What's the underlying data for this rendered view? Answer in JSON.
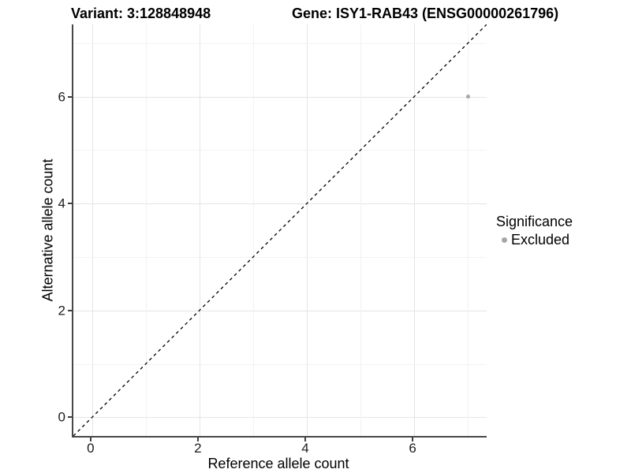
{
  "header": {
    "variant_title": "Variant: 3:128848948",
    "gene_title": "Gene: ISY1-RAB43 (ENSG00000261796)"
  },
  "axes": {
    "x": {
      "label": "Reference allele count",
      "major_ticks": [
        0,
        2,
        4,
        6
      ],
      "minor_ticks": [
        1,
        3,
        5,
        7
      ]
    },
    "y": {
      "label": "Alternative allele count",
      "major_ticks": [
        0,
        2,
        4,
        6
      ],
      "minor_ticks": [
        1,
        3,
        5,
        7
      ]
    }
  },
  "legend": {
    "title": "Significance",
    "items": [
      {
        "label": "Excluded",
        "color": "#a7a7a7"
      }
    ]
  },
  "chart_data": {
    "type": "scatter",
    "title_left": "Variant: 3:128848948",
    "title_right": "Gene: ISY1-RAB43 (ENSG00000261796)",
    "xlabel": "Reference allele count",
    "ylabel": "Alternative allele count",
    "xlim": [
      -0.35,
      7.35
    ],
    "ylim": [
      -0.35,
      7.35
    ],
    "x_ticks": [
      0,
      2,
      4,
      6
    ],
    "y_ticks": [
      0,
      2,
      4,
      6
    ],
    "grid": true,
    "legend_position": "right",
    "legend_title": "Significance",
    "series": [
      {
        "name": "Excluded",
        "color": "#a7a7a7",
        "points": [
          {
            "x": 7,
            "y": 6
          }
        ]
      }
    ],
    "reference_line": {
      "type": "identity y=x",
      "style": "dashed",
      "color": "#000000"
    }
  },
  "colors": {
    "major_grid": "#e4e4e4",
    "minor_grid": "#f2f2f2",
    "axis_line": "#474747",
    "point": "#a7a7a7"
  }
}
